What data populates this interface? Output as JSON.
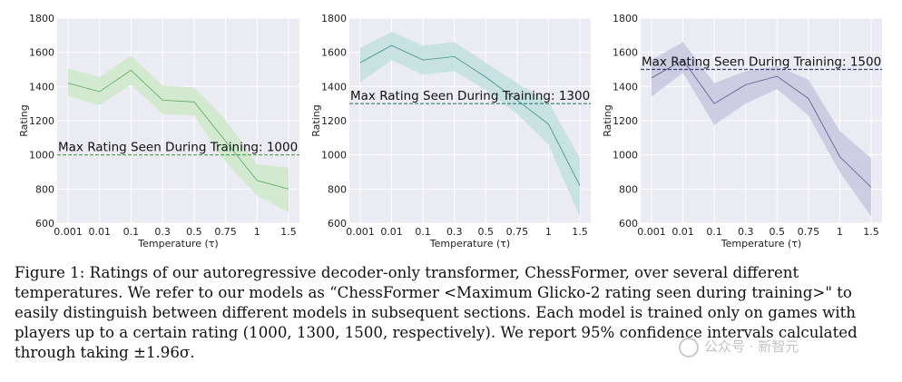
{
  "chart_data": [
    {
      "type": "line",
      "categories": [
        "0.001",
        "0.01",
        "0.1",
        "0.3",
        "0.5",
        "0.75",
        "1",
        "1.5"
      ],
      "series": [
        {
          "values": [
            1420,
            1370,
            1495,
            1320,
            1310,
            1080,
            850,
            800
          ],
          "lower": [
            1345,
            1290,
            1410,
            1240,
            1230,
            960,
            760,
            665
          ],
          "upper": [
            1505,
            1455,
            1580,
            1405,
            1395,
            1205,
            945,
            925
          ],
          "color": "#5aa85a",
          "band_color": "#cfe9cc"
        }
      ],
      "reference_line": {
        "value": 1000,
        "label": "Max Rating Seen During Training: 1000",
        "color": "#4c9a4c"
      },
      "xlabel": "Temperature (τ)",
      "ylabel": "Rating",
      "ylim": [
        600,
        1800
      ],
      "yticks": [
        600,
        800,
        1000,
        1200,
        1400,
        1600,
        1800
      ],
      "grid": true
    },
    {
      "type": "line",
      "categories": [
        "0.001",
        "0.01",
        "0.1",
        "0.3",
        "0.5",
        "0.75",
        "1",
        "1.5"
      ],
      "series": [
        {
          "values": [
            1540,
            1640,
            1555,
            1575,
            1455,
            1320,
            1180,
            820
          ],
          "lower": [
            1425,
            1555,
            1470,
            1490,
            1380,
            1240,
            1060,
            640
          ],
          "upper": [
            1625,
            1720,
            1640,
            1660,
            1540,
            1420,
            1310,
            980
          ],
          "color": "#3f8f8a",
          "band_color": "#c4e1df"
        }
      ],
      "reference_line": {
        "value": 1300,
        "label": "Max Rating Seen During Training: 1300",
        "color": "#2f7d78"
      },
      "xlabel": "Temperature (τ)",
      "ylabel": "Rating",
      "ylim": [
        600,
        1800
      ],
      "yticks": [
        600,
        800,
        1000,
        1200,
        1400,
        1600,
        1800
      ],
      "grid": true
    },
    {
      "type": "line",
      "categories": [
        "0.001",
        "0.01",
        "0.1",
        "0.3",
        "0.5",
        "0.75",
        "1",
        "1.5"
      ],
      "series": [
        {
          "values": [
            1450,
            1555,
            1300,
            1410,
            1460,
            1330,
            990,
            810
          ],
          "lower": [
            1340,
            1480,
            1175,
            1300,
            1385,
            1230,
            900,
            640
          ],
          "upper": [
            1555,
            1660,
            1420,
            1490,
            1520,
            1440,
            1140,
            980
          ],
          "color": "#55598f",
          "band_color": "#c9cae0"
        }
      ],
      "reference_line": {
        "value": 1500,
        "label": "Max Rating Seen During Training: 1500",
        "color": "#3b3f7a"
      },
      "xlabel": "Temperature (τ)",
      "ylabel": "Rating",
      "ylim": [
        600,
        1800
      ],
      "yticks": [
        600,
        800,
        1000,
        1200,
        1400,
        1600,
        1800
      ],
      "grid": true
    }
  ],
  "caption": "Figure 1: Ratings of our autoregressive decoder-only transformer, ChessFormer, over several different temperatures. We refer to our models as “ChessFormer <Maximum Glicko-2 rating seen during training>\" to easily distinguish between different models in subsequent sections. Each model is trained only on games with players up to a certain rating (1000, 1300, 1500, respectively). We report 95% confidence intervals calculated through taking ±1.96σ.",
  "watermark": "公众号 · 新智元"
}
